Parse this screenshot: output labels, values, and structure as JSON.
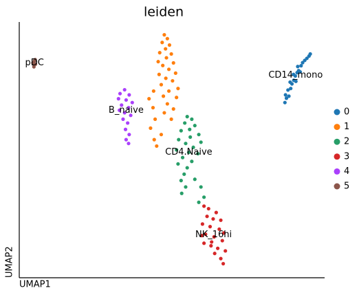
{
  "chart_data": {
    "type": "scatter",
    "title": "leiden",
    "x_label": "UMAP1",
    "y_label": "UMAP2",
    "xlim": [
      0,
      100
    ],
    "ylim": [
      0,
      100
    ],
    "grid": false,
    "legend_position": "right",
    "series": [
      {
        "name": "0",
        "label": "CD14_mono",
        "color": "#1f77b4",
        "x": [
          87.0,
          87.5,
          87.2,
          88.3,
          88.0,
          88.9,
          89.3,
          88.7,
          89.9,
          90.4,
          89.8,
          91.0,
          91.5,
          91.2,
          92.3,
          92.8,
          93.5,
          94.2,
          94.9,
          95.3,
          90.6,
          92.0
        ],
        "y": [
          68.5,
          70.2,
          71.5,
          71.0,
          73.4,
          74.0,
          75.8,
          76.5,
          77.2,
          78.9,
          79.5,
          80.2,
          81.0,
          82.6,
          82.9,
          84.1,
          85.0,
          85.8,
          86.7,
          87.5,
          76.8,
          80.5
        ]
      },
      {
        "name": "1",
        "color": "#ff7f0e",
        "x": [
          47.5,
          48.5,
          46.8,
          49.2,
          47.9,
          46.0,
          49.8,
          48.2,
          45.5,
          50.5,
          47.0,
          49.0,
          51.2,
          45.8,
          48.0,
          50.2,
          46.5,
          52.0,
          49.0,
          47.2,
          51.5,
          48.5,
          50.5,
          47.5,
          49.8,
          44.0,
          42.5,
          43.8,
          44.5,
          43.0,
          44.2,
          46.5,
          45.0
        ],
        "y": [
          95.0,
          93.5,
          92.0,
          91.0,
          89.5,
          88.0,
          87.5,
          86.0,
          84.5,
          84.0,
          83.0,
          81.5,
          80.0,
          79.5,
          78.0,
          77.0,
          75.5,
          74.0,
          73.0,
          71.0,
          70.5,
          68.0,
          66.0,
          64.5,
          62.0,
          73.0,
          70.0,
          66.5,
          62.0,
          58.5,
          54.0,
          56.0,
          51.5
        ]
      },
      {
        "name": "2",
        "label": "CD4.Naive",
        "color": "#279e68",
        "x": [
          55.0,
          56.5,
          54.2,
          57.5,
          55.8,
          53.0,
          58.8,
          56.0,
          52.2,
          59.5,
          54.5,
          57.0,
          51.5,
          55.5,
          58.5,
          53.5,
          56.5,
          52.0,
          55.0,
          54.0,
          53.0,
          54.5,
          53.2,
          57.5,
          59.5,
          60.5,
          58.8
        ],
        "y": [
          63.0,
          62.0,
          60.5,
          59.5,
          58.0,
          57.5,
          56.0,
          55.0,
          54.0,
          53.0,
          52.5,
          51.0,
          50.0,
          49.0,
          48.5,
          47.0,
          45.5,
          44.5,
          43.0,
          40.5,
          38.0,
          35.5,
          33.0,
          38.5,
          35.5,
          31.5,
          29.5
        ]
      },
      {
        "name": "3",
        "label": "NK_16hi",
        "color": "#d62728",
        "x": [
          60.5,
          62.0,
          64.5,
          61.5,
          63.5,
          66.0,
          60.0,
          62.5,
          65.5,
          67.0,
          61.0,
          63.8,
          66.5,
          60.5,
          62.8,
          65.0,
          67.5,
          64.0,
          66.0,
          66.8,
          59.8,
          63.0
        ],
        "y": [
          28.0,
          27.0,
          25.5,
          24.0,
          23.0,
          22.5,
          21.0,
          20.0,
          19.0,
          17.5,
          17.0,
          16.0,
          14.5,
          13.5,
          12.5,
          11.5,
          10.5,
          9.5,
          7.5,
          5.5,
          16.5,
          14.0
        ]
      },
      {
        "name": "4",
        "label": "B_naive",
        "color": "#aa40fc",
        "x": [
          34.5,
          33.0,
          36.0,
          32.5,
          35.0,
          37.0,
          33.5,
          35.8,
          32.8,
          34.5,
          36.5,
          34.0,
          35.5,
          34.8,
          36.0,
          35.0,
          35.8
        ],
        "y": [
          73.5,
          72.0,
          71.5,
          70.0,
          69.5,
          68.5,
          67.5,
          66.5,
          65.5,
          64.5,
          63.5,
          62.0,
          60.5,
          58.0,
          56.0,
          54.0,
          52.5
        ]
      },
      {
        "name": "5",
        "label": "pDC",
        "color": "#8c564b",
        "x": [
          4.5,
          5.0,
          5.3,
          4.8,
          5.2
        ],
        "y": [
          84.0,
          84.8,
          83.5,
          82.5,
          85.3
        ]
      }
    ]
  }
}
